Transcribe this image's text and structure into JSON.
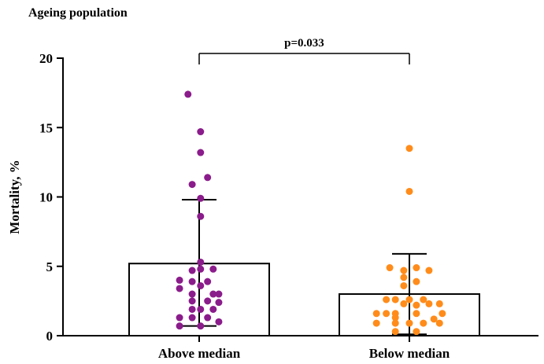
{
  "chart_data": {
    "type": "scatter",
    "title": "Ageing population",
    "ylabel": "Mortality, %",
    "xlabel": "",
    "ylim": [
      0,
      20
    ],
    "yticks": [
      "0",
      "5",
      "10",
      "15",
      "20"
    ],
    "categories": [
      "Above median",
      "Below median"
    ],
    "annotation": "p=0.033",
    "grid": false,
    "series": [
      {
        "name": "Above median",
        "color": "#8B1C8B",
        "mean": 5.2,
        "error_upper": 9.8,
        "error_lower": 0.7,
        "points": [
          {
            "offset": -0.16,
            "y": 17.4
          },
          {
            "offset": 0.02,
            "y": 14.7
          },
          {
            "offset": 0.02,
            "y": 13.2
          },
          {
            "offset": 0.12,
            "y": 11.4
          },
          {
            "offset": -0.1,
            "y": 10.9
          },
          {
            "offset": 0.02,
            "y": 9.9
          },
          {
            "offset": 0.02,
            "y": 8.6
          },
          {
            "offset": 0.02,
            "y": 5.3
          },
          {
            "offset": -0.1,
            "y": 4.7
          },
          {
            "offset": 0.02,
            "y": 4.8
          },
          {
            "offset": 0.2,
            "y": 4.8
          },
          {
            "offset": -0.28,
            "y": 4.0
          },
          {
            "offset": -0.1,
            "y": 3.9
          },
          {
            "offset": 0.12,
            "y": 3.9
          },
          {
            "offset": -0.28,
            "y": 3.4
          },
          {
            "offset": 0.02,
            "y": 3.6
          },
          {
            "offset": -0.1,
            "y": 3.0
          },
          {
            "offset": 0.2,
            "y": 3.0
          },
          {
            "offset": 0.28,
            "y": 3.0
          },
          {
            "offset": -0.1,
            "y": 2.5
          },
          {
            "offset": 0.12,
            "y": 2.5
          },
          {
            "offset": 0.28,
            "y": 2.4
          },
          {
            "offset": -0.1,
            "y": 1.9
          },
          {
            "offset": 0.02,
            "y": 1.9
          },
          {
            "offset": 0.2,
            "y": 1.9
          },
          {
            "offset": -0.28,
            "y": 1.3
          },
          {
            "offset": -0.1,
            "y": 1.3
          },
          {
            "offset": 0.12,
            "y": 1.3
          },
          {
            "offset": 0.28,
            "y": 1.0
          },
          {
            "offset": -0.28,
            "y": 0.7
          },
          {
            "offset": 0.02,
            "y": 0.7
          }
        ]
      },
      {
        "name": "Below median",
        "color": "#FF8C1A",
        "mean": 3.0,
        "error_upper": 5.9,
        "error_lower": 0.1,
        "points": [
          {
            "offset": 0.0,
            "y": 13.5
          },
          {
            "offset": 0.0,
            "y": 10.4
          },
          {
            "offset": -0.28,
            "y": 4.9
          },
          {
            "offset": -0.08,
            "y": 4.7
          },
          {
            "offset": 0.1,
            "y": 4.9
          },
          {
            "offset": 0.28,
            "y": 4.7
          },
          {
            "offset": -0.08,
            "y": 4.2
          },
          {
            "offset": 0.1,
            "y": 3.9
          },
          {
            "offset": -0.08,
            "y": 3.6
          },
          {
            "offset": -0.33,
            "y": 2.6
          },
          {
            "offset": -0.2,
            "y": 2.6
          },
          {
            "offset": 0.0,
            "y": 2.6
          },
          {
            "offset": 0.2,
            "y": 2.6
          },
          {
            "offset": -0.08,
            "y": 2.3
          },
          {
            "offset": 0.1,
            "y": 2.2
          },
          {
            "offset": 0.28,
            "y": 2.3
          },
          {
            "offset": 0.43,
            "y": 2.3
          },
          {
            "offset": -0.47,
            "y": 1.6
          },
          {
            "offset": -0.33,
            "y": 1.6
          },
          {
            "offset": -0.2,
            "y": 1.6
          },
          {
            "offset": 0.1,
            "y": 1.6
          },
          {
            "offset": 0.47,
            "y": 1.6
          },
          {
            "offset": -0.2,
            "y": 1.3
          },
          {
            "offset": 0.35,
            "y": 1.2
          },
          {
            "offset": -0.47,
            "y": 0.9
          },
          {
            "offset": -0.2,
            "y": 0.9
          },
          {
            "offset": 0.0,
            "y": 0.9
          },
          {
            "offset": 0.2,
            "y": 0.9
          },
          {
            "offset": 0.43,
            "y": 0.9
          },
          {
            "offset": -0.2,
            "y": 0.3
          },
          {
            "offset": 0.1,
            "y": 0.3
          }
        ]
      }
    ]
  }
}
